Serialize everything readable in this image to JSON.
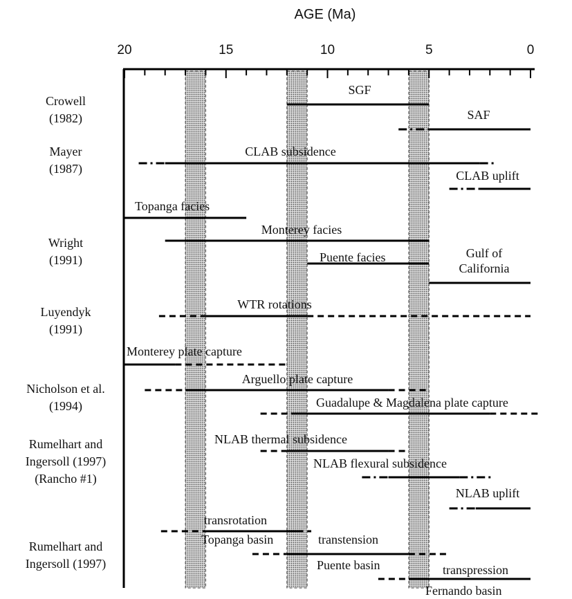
{
  "chart_data": {
    "type": "timeline",
    "title": "",
    "xlabel": "AGE (Ma)",
    "ylabel": "",
    "xlim": [
      20,
      0
    ],
    "x_ticks": [
      20,
      15,
      10,
      5,
      0
    ],
    "x_minor_step": 1,
    "grid": false,
    "shaded_bands": [
      {
        "from": 17,
        "to": 16
      },
      {
        "from": 12,
        "to": 11
      },
      {
        "from": 6,
        "to": 5
      }
    ],
    "sources": [
      {
        "lines": [
          "Crowell",
          "(1982)"
        ]
      },
      {
        "lines": [
          "Mayer",
          "(1987)"
        ]
      },
      {
        "lines": [
          "Wright",
          "(1991)"
        ]
      },
      {
        "lines": [
          "Luyendyk",
          "(1991)"
        ]
      },
      {
        "lines": [
          "Nicholson et al.",
          "(1994)"
        ]
      },
      {
        "lines": [
          "Rumelhart and",
          "Ingersoll (1997)",
          "(Rancho #1)"
        ]
      },
      {
        "lines": [
          "Rumelhart and",
          "Ingersoll (1997)"
        ]
      }
    ],
    "events": [
      {
        "label": "SGF",
        "segments": [
          {
            "from": 12,
            "to": 5,
            "style": "solid"
          }
        ]
      },
      {
        "label": "SAF",
        "segments": [
          {
            "from": 6.5,
            "to": 5,
            "style": "dashdot"
          },
          {
            "from": 5,
            "to": 0,
            "style": "solid"
          }
        ]
      },
      {
        "label": "CLAB subsidence",
        "segments": [
          {
            "from": 19.3,
            "to": 18,
            "style": "dashdot"
          },
          {
            "from": 18,
            "to": 2.5,
            "style": "solid"
          },
          {
            "from": 2.5,
            "to": 1.8,
            "style": "dashdot"
          }
        ]
      },
      {
        "label": "CLAB uplift",
        "segments": [
          {
            "from": 4,
            "to": 2.5,
            "style": "dashdot"
          },
          {
            "from": 2.5,
            "to": 0,
            "style": "solid"
          }
        ]
      },
      {
        "label": "Topanga facies",
        "segments": [
          {
            "from": 20,
            "to": 14,
            "style": "solid"
          }
        ]
      },
      {
        "label": "Monterey facies",
        "segments": [
          {
            "from": 18,
            "to": 5,
            "style": "solid"
          }
        ]
      },
      {
        "label": "Puente facies",
        "segments": [
          {
            "from": 11,
            "to": 5,
            "style": "solid"
          }
        ]
      },
      {
        "label": "Gulf of California",
        "segments": [
          {
            "from": 5,
            "to": 0,
            "style": "solid"
          }
        ]
      },
      {
        "label": "WTR  rotations",
        "segments": [
          {
            "from": 18.3,
            "to": 16,
            "style": "dashed"
          },
          {
            "from": 16,
            "to": 11,
            "style": "solid"
          },
          {
            "from": 11,
            "to": 0,
            "style": "dashed"
          }
        ]
      },
      {
        "label": "Monterey plate capture",
        "segments": [
          {
            "from": 20,
            "to": 17.5,
            "style": "solid"
          },
          {
            "from": 17.5,
            "to": 12,
            "style": "dashed"
          }
        ]
      },
      {
        "label": "Arguello plate capture",
        "segments": [
          {
            "from": 19,
            "to": 17,
            "style": "dashed"
          },
          {
            "from": 17,
            "to": 7,
            "style": "solid"
          },
          {
            "from": 7,
            "to": 5,
            "style": "dashed"
          }
        ]
      },
      {
        "label": "Guadalupe & Magdalena plate capture",
        "segments": [
          {
            "from": 13.3,
            "to": 11.8,
            "style": "dashed"
          },
          {
            "from": 11.8,
            "to": 2,
            "style": "solid"
          },
          {
            "from": 2,
            "to": -0.5,
            "style": "dashed"
          }
        ]
      },
      {
        "label": "NLAB thermal subsidence",
        "segments": [
          {
            "from": 13.3,
            "to": 12,
            "style": "dashed"
          },
          {
            "from": 12,
            "to": 7,
            "style": "solid"
          },
          {
            "from": 7,
            "to": 6,
            "style": "dashed"
          }
        ]
      },
      {
        "label": "NLAB flexural subsidence",
        "segments": [
          {
            "from": 8.3,
            "to": 7,
            "style": "dashdot"
          },
          {
            "from": 7,
            "to": 3.5,
            "style": "solid"
          },
          {
            "from": 3.5,
            "to": 1.8,
            "style": "dashdot"
          }
        ]
      },
      {
        "label": "NLAB uplift",
        "segments": [
          {
            "from": 4,
            "to": 2.7,
            "style": "dashdot"
          },
          {
            "from": 2.7,
            "to": 0,
            "style": "solid"
          }
        ]
      },
      {
        "label": "transrotation",
        "segments": [
          {
            "from": 18.2,
            "to": 16,
            "style": "dashed"
          },
          {
            "from": 16,
            "to": 11.5,
            "style": "solid"
          },
          {
            "from": 11.5,
            "to": 10.8,
            "style": "dashed"
          }
        ]
      },
      {
        "label": "Topanga basin",
        "segments": []
      },
      {
        "label": "transtension",
        "segments": [
          {
            "from": 13.7,
            "to": 12,
            "style": "dashed"
          },
          {
            "from": 12,
            "to": 6,
            "style": "solid"
          },
          {
            "from": 6,
            "to": 4,
            "style": "dashed"
          }
        ]
      },
      {
        "label": "Puente basin",
        "segments": []
      },
      {
        "label": "transpression",
        "segments": [
          {
            "from": 7.5,
            "to": 6,
            "style": "dashed"
          },
          {
            "from": 6,
            "to": 0,
            "style": "solid"
          }
        ]
      },
      {
        "label": "Fernando basin",
        "segments": []
      }
    ]
  }
}
